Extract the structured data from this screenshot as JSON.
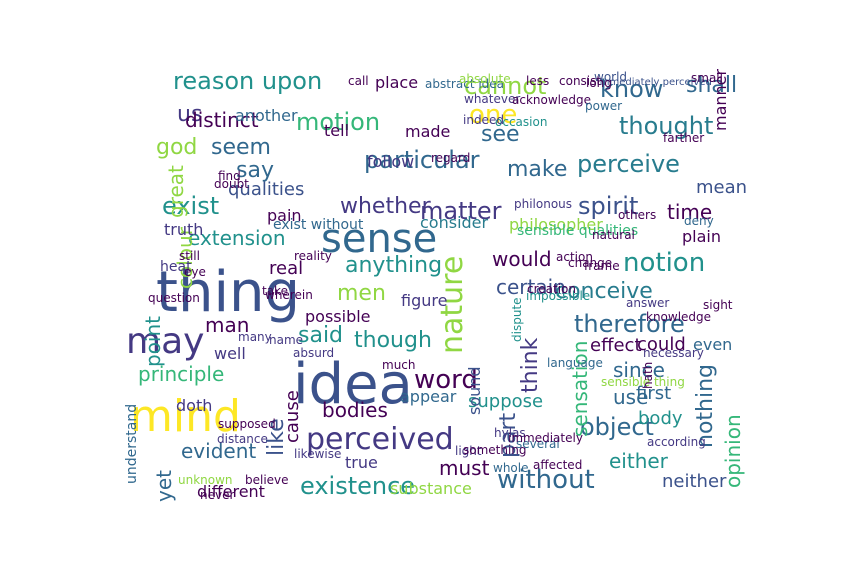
{
  "palette": [
    "#440154",
    "#3b528b",
    "#21918c",
    "#5ec962",
    "#fde725",
    "#31688e",
    "#35b779",
    "#443983",
    "#90d743",
    "#287c8e"
  ],
  "words": [
    {
      "text": "thing",
      "color": "#3b528b"
    },
    {
      "text": "idea",
      "color": "#3b528b"
    },
    {
      "text": "mind",
      "color": "#fde725"
    },
    {
      "text": "sense",
      "color": "#31688e"
    },
    {
      "text": "may",
      "color": "#443983"
    },
    {
      "text": "perceived",
      "color": "#443983"
    },
    {
      "text": "existence",
      "color": "#21918c"
    },
    {
      "text": "without",
      "color": "#31688e"
    },
    {
      "text": "nature",
      "color": "#90d743"
    },
    {
      "text": "word",
      "color": "#440154"
    },
    {
      "text": "object",
      "color": "#31688e"
    },
    {
      "text": "therefore",
      "color": "#31688e"
    },
    {
      "text": "perceive",
      "color": "#287c8e"
    },
    {
      "text": "motion",
      "color": "#35b779"
    },
    {
      "text": "thought",
      "color": "#287c8e"
    },
    {
      "text": "spirit",
      "color": "#3b528b"
    },
    {
      "text": "matter",
      "color": "#443983"
    },
    {
      "text": "notion",
      "color": "#21918c"
    },
    {
      "text": "one",
      "color": "#fde725"
    },
    {
      "text": "know",
      "color": "#31688e"
    },
    {
      "text": "cannot",
      "color": "#90d743"
    },
    {
      "text": "reason upon",
      "color": "#21918c"
    },
    {
      "text": "particular",
      "color": "#31688e"
    },
    {
      "text": "exist",
      "color": "#21918c"
    },
    {
      "text": "say",
      "color": "#31688e"
    },
    {
      "text": "said",
      "color": "#21918c"
    },
    {
      "text": "though",
      "color": "#21918c"
    },
    {
      "text": "part",
      "color": "#3b528b"
    },
    {
      "text": "think",
      "color": "#443983"
    },
    {
      "text": "see",
      "color": "#31688e"
    },
    {
      "text": "make",
      "color": "#31688e"
    },
    {
      "text": "whether",
      "color": "#443983"
    },
    {
      "text": "anything",
      "color": "#21918c"
    },
    {
      "text": "men",
      "color": "#90d743"
    },
    {
      "text": "god",
      "color": "#90d743"
    },
    {
      "text": "seem",
      "color": "#31688e"
    },
    {
      "text": "us",
      "color": "#443983"
    },
    {
      "text": "distinct",
      "color": "#440154"
    },
    {
      "text": "extension",
      "color": "#21918c"
    },
    {
      "text": "conceive",
      "color": "#287c8e"
    },
    {
      "text": "certain",
      "color": "#3b528b"
    },
    {
      "text": "time",
      "color": "#440154"
    },
    {
      "text": "would",
      "color": "#440154"
    },
    {
      "text": "sensation",
      "color": "#35b779"
    },
    {
      "text": "opinion",
      "color": "#35b779"
    },
    {
      "text": "nothing",
      "color": "#31688e"
    },
    {
      "text": "evident",
      "color": "#31688e"
    },
    {
      "text": "must",
      "color": "#440154"
    },
    {
      "text": "principle",
      "color": "#35b779"
    },
    {
      "text": "bodies",
      "color": "#440154"
    },
    {
      "text": "shall",
      "color": "#31688e"
    },
    {
      "text": "yet",
      "color": "#31688e"
    },
    {
      "text": "great",
      "color": "#90d743"
    },
    {
      "text": "colour",
      "color": "#90d743"
    },
    {
      "text": "point",
      "color": "#21918c"
    },
    {
      "text": "man",
      "color": "#440154"
    },
    {
      "text": "like",
      "color": "#3b528b"
    },
    {
      "text": "cause",
      "color": "#440154"
    },
    {
      "text": "since",
      "color": "#31688e"
    },
    {
      "text": "use",
      "color": "#31688e"
    },
    {
      "text": "either",
      "color": "#21918c"
    },
    {
      "text": "suppose",
      "color": "#21918c"
    },
    {
      "text": "substance",
      "color": "#90d743"
    },
    {
      "text": "neither",
      "color": "#3b528b"
    },
    {
      "text": "mean",
      "color": "#3b528b"
    },
    {
      "text": "qualities",
      "color": "#3b528b"
    },
    {
      "text": "real",
      "color": "#440154"
    },
    {
      "text": "sound",
      "color": "#3b528b"
    },
    {
      "text": "true",
      "color": "#443983"
    },
    {
      "text": "effect",
      "color": "#440154"
    },
    {
      "text": "even",
      "color": "#31688e"
    },
    {
      "text": "figure",
      "color": "#443983"
    },
    {
      "text": "well",
      "color": "#443983"
    },
    {
      "text": "doth",
      "color": "#443983"
    },
    {
      "text": "first",
      "color": "#31688e"
    },
    {
      "text": "body",
      "color": "#21918c"
    },
    {
      "text": "could",
      "color": "#440154"
    },
    {
      "text": "appear",
      "color": "#31688e"
    },
    {
      "text": "follow",
      "color": "#443983"
    },
    {
      "text": "consider",
      "color": "#287c8e"
    },
    {
      "text": "philosopher",
      "color": "#90d743"
    },
    {
      "text": "plain",
      "color": "#440154"
    },
    {
      "text": "truth",
      "color": "#443983"
    },
    {
      "text": "made",
      "color": "#440154"
    },
    {
      "text": "place",
      "color": "#440154"
    },
    {
      "text": "manner",
      "color": "#440154"
    },
    {
      "text": "pain",
      "color": "#440154"
    },
    {
      "text": "different",
      "color": "#440154"
    },
    {
      "text": "tell",
      "color": "#440154"
    },
    {
      "text": "another",
      "color": "#31688e"
    },
    {
      "text": "possible",
      "color": "#440154"
    },
    {
      "text": "sensible qualities",
      "color": "#35b779"
    },
    {
      "text": "exist without",
      "color": "#31688e"
    },
    {
      "text": "abstract idea",
      "color": "#31688e"
    },
    {
      "text": "immediately perceived",
      "color": "#3b528b"
    },
    {
      "text": "understand",
      "color": "#31688e"
    },
    {
      "text": "distance",
      "color": "#443983"
    },
    {
      "text": "hylas",
      "color": "#443983"
    },
    {
      "text": "philonous",
      "color": "#443983"
    },
    {
      "text": "sight",
      "color": "#440154"
    },
    {
      "text": "knowledge",
      "color": "#440154"
    },
    {
      "text": "necessary",
      "color": "#443983"
    },
    {
      "text": "language",
      "color": "#31688e"
    },
    {
      "text": "according",
      "color": "#443983"
    },
    {
      "text": "light",
      "color": "#443983"
    },
    {
      "text": "heat",
      "color": "#443983"
    },
    {
      "text": "sensible thing",
      "color": "#90d743"
    },
    {
      "text": "deny",
      "color": "#31688e"
    },
    {
      "text": "answer",
      "color": "#443983"
    },
    {
      "text": "world",
      "color": "#3b528b"
    },
    {
      "text": "absolute",
      "color": "#90d743"
    },
    {
      "text": "whatever",
      "color": "#443983"
    },
    {
      "text": "acknowledge",
      "color": "#440154"
    },
    {
      "text": "power",
      "color": "#31688e"
    },
    {
      "text": "occasion",
      "color": "#21918c"
    },
    {
      "text": "indeed",
      "color": "#443983"
    },
    {
      "text": "dispute",
      "color": "#21918c"
    },
    {
      "text": "impossible",
      "color": "#21918c"
    },
    {
      "text": "wherein",
      "color": "#440154"
    },
    {
      "text": "likewise",
      "color": "#443983"
    },
    {
      "text": "name",
      "color": "#443983"
    },
    {
      "text": "absurd",
      "color": "#443983"
    },
    {
      "text": "many",
      "color": "#443983"
    },
    {
      "text": "something",
      "color": "#440154"
    },
    {
      "text": "several",
      "color": "#31688e"
    },
    {
      "text": "whole",
      "color": "#31688e"
    },
    {
      "text": "immediately",
      "color": "#440154"
    },
    {
      "text": "hath",
      "color": "#440154"
    },
    {
      "text": "unknown",
      "color": "#90d743"
    },
    {
      "text": "eye",
      "color": "#440154"
    },
    {
      "text": "still",
      "color": "#440154"
    },
    {
      "text": "find",
      "color": "#440154"
    },
    {
      "text": "take",
      "color": "#440154"
    },
    {
      "text": "never",
      "color": "#440154"
    },
    {
      "text": "believe",
      "color": "#440154"
    },
    {
      "text": "farther",
      "color": "#440154"
    },
    {
      "text": "reality",
      "color": "#440154"
    },
    {
      "text": "much",
      "color": "#440154"
    },
    {
      "text": "question",
      "color": "#440154"
    },
    {
      "text": "doubt",
      "color": "#440154"
    },
    {
      "text": "supposed",
      "color": "#440154"
    },
    {
      "text": "affected",
      "color": "#440154"
    },
    {
      "text": "regard",
      "color": "#440154"
    },
    {
      "text": "others",
      "color": "#440154"
    },
    {
      "text": "natural",
      "color": "#440154"
    },
    {
      "text": "frame",
      "color": "#440154"
    },
    {
      "text": "change",
      "color": "#440154"
    },
    {
      "text": "action",
      "color": "#440154"
    },
    {
      "text": "creation",
      "color": "#440154"
    },
    {
      "text": "call",
      "color": "#440154"
    },
    {
      "text": "less",
      "color": "#440154"
    },
    {
      "text": "consist",
      "color": "#440154"
    },
    {
      "text": "long",
      "color": "#440154"
    },
    {
      "text": "small",
      "color": "#440154"
    }
  ]
}
